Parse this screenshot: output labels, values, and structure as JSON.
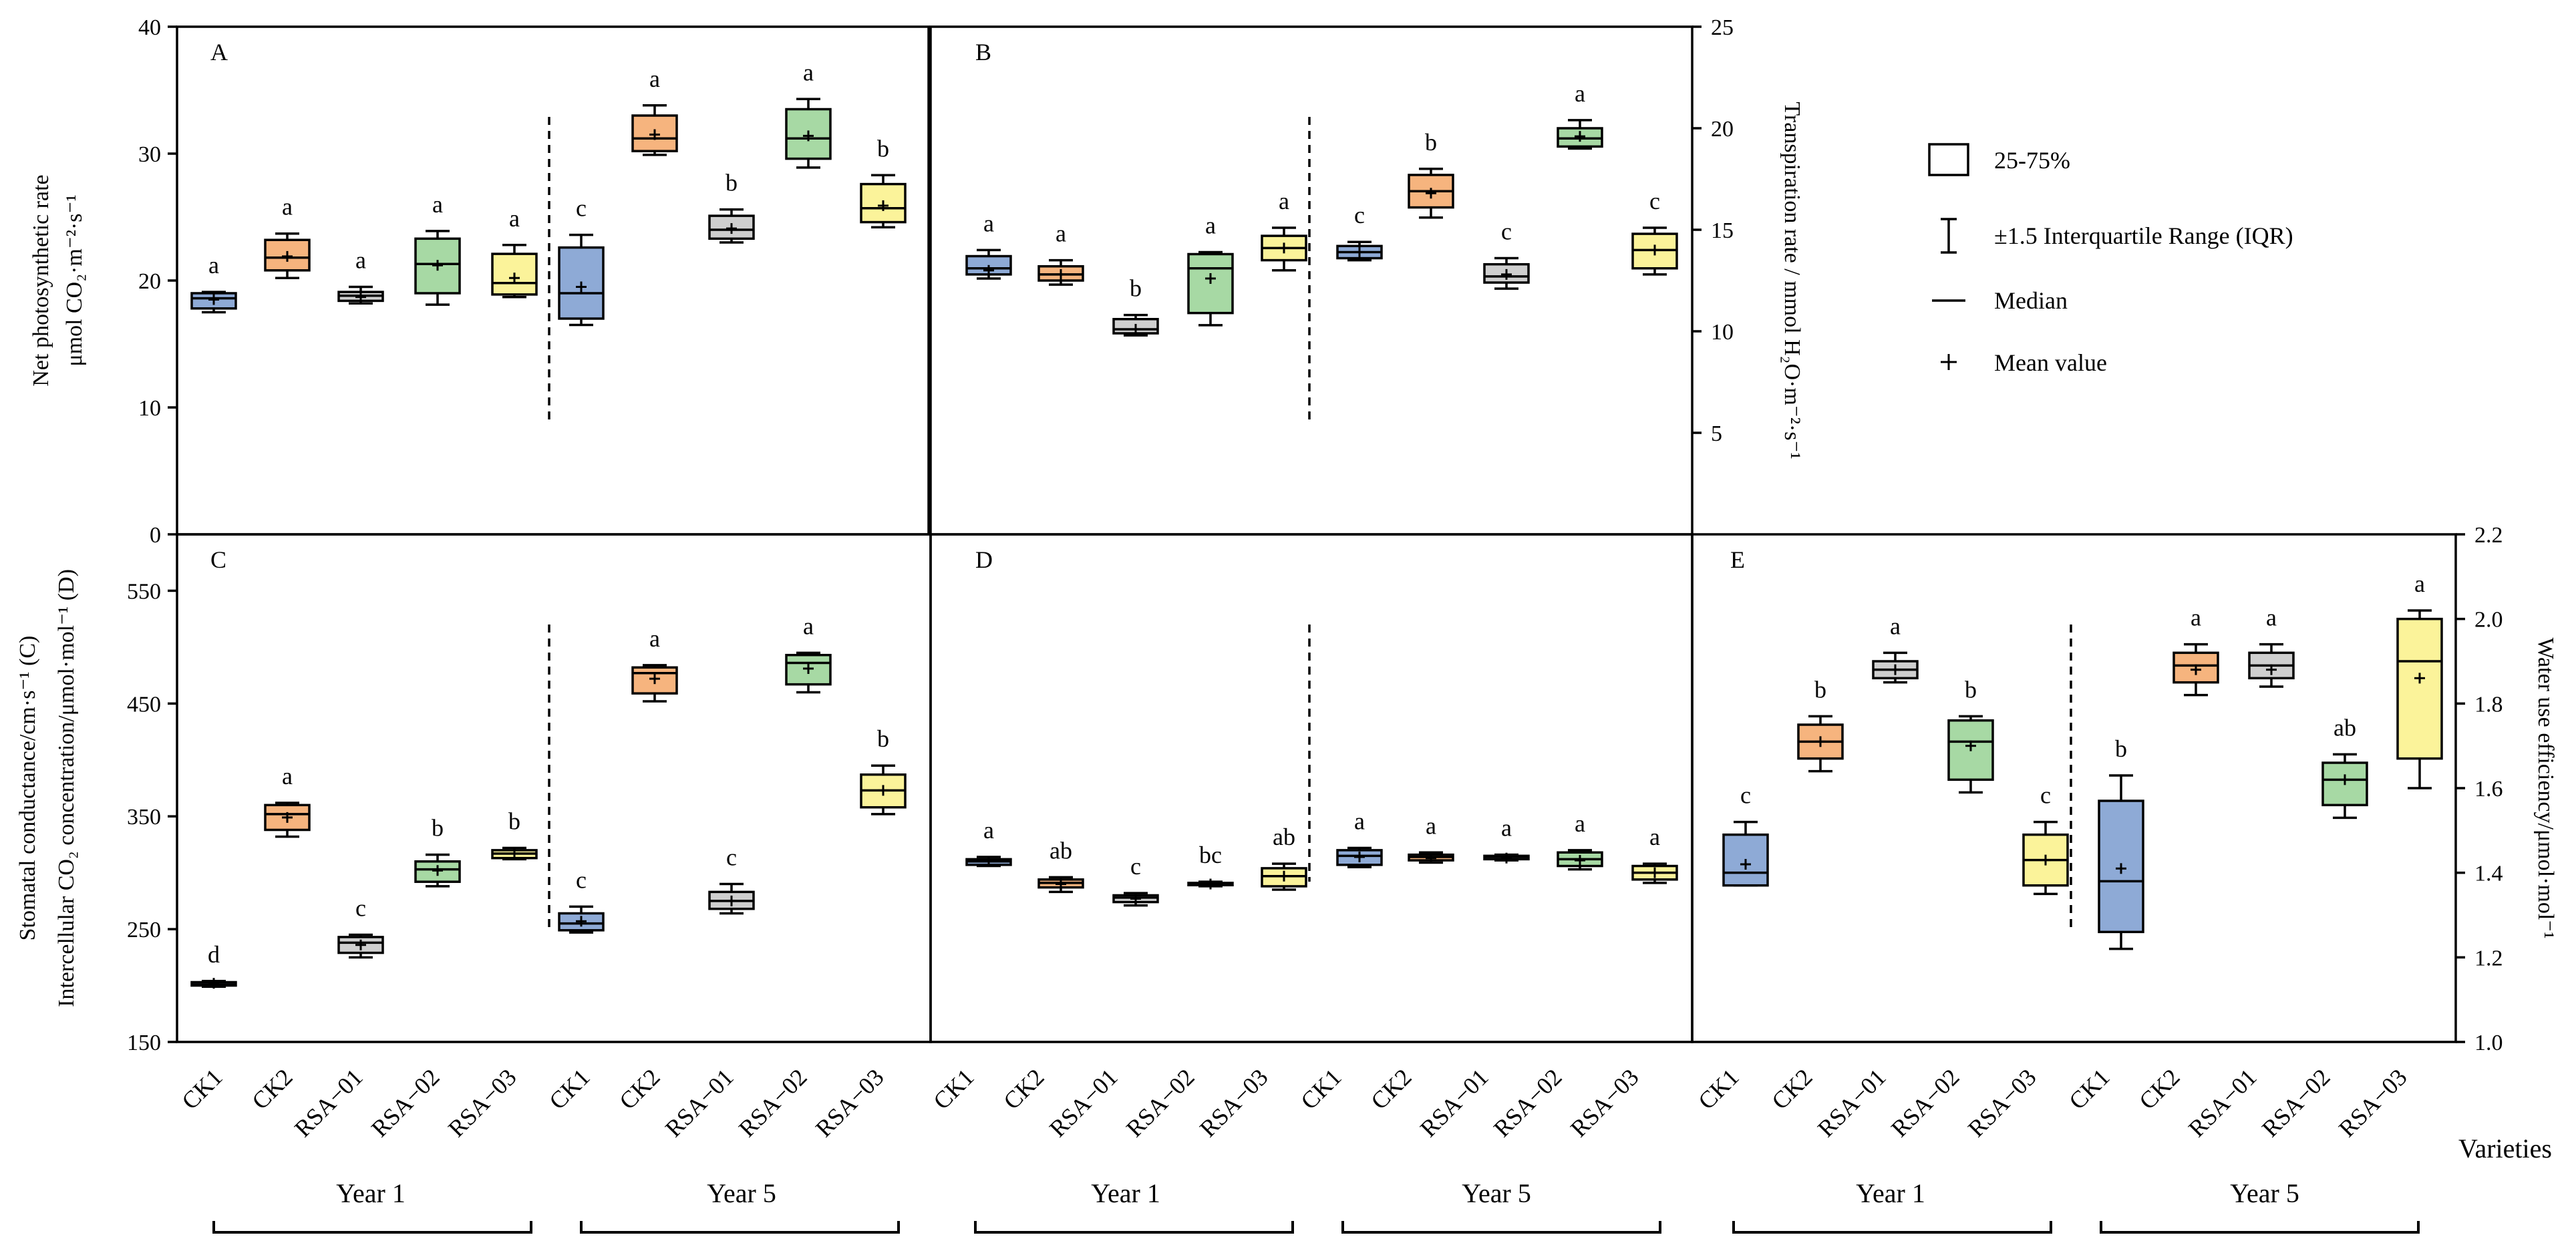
{
  "colors": {
    "CK1": "#8eaad6",
    "CK2": "#f6b47e",
    "RSA-01": "#cfcfcf",
    "RSA-02": "#a7d9a4",
    "RSA-03": "#fbf39a"
  },
  "legend": {
    "box": "25-75%",
    "whisker": "±1.5 Interquartile Range (IQR)",
    "median": "Median",
    "mean": "Mean value"
  },
  "x_axis": {
    "categories": [
      "CK1",
      "CK2",
      "RSA−01",
      "RSA−02",
      "RSA−03"
    ],
    "groups": [
      "Year 1",
      "Year 5"
    ],
    "title": "Varieties"
  },
  "chart_data": [
    {
      "panel": "A",
      "type": "box",
      "ylabel_line1": "Net photosynthetic rate",
      "ylabel_line2": "μmol CO₂·m⁻²·s⁻¹",
      "ylim": [
        0,
        40
      ],
      "yticks": [
        0,
        10,
        20,
        30,
        40
      ],
      "series": [
        {
          "group": "Year 1",
          "variety": "CK1",
          "min": 17.5,
          "q1": 17.8,
          "median": 18.6,
          "q3": 19.0,
          "max": 19.1,
          "mean": 18.5,
          "letter": "a"
        },
        {
          "group": "Year 1",
          "variety": "CK2",
          "min": 20.2,
          "q1": 20.8,
          "median": 21.8,
          "q3": 23.2,
          "max": 23.7,
          "mean": 21.9,
          "letter": "a"
        },
        {
          "group": "Year 1",
          "variety": "RSA-01",
          "min": 18.2,
          "q1": 18.4,
          "median": 18.8,
          "q3": 19.1,
          "max": 19.5,
          "mean": 18.7,
          "letter": "a"
        },
        {
          "group": "Year 1",
          "variety": "RSA-02",
          "min": 18.1,
          "q1": 19.0,
          "median": 21.3,
          "q3": 23.3,
          "max": 23.9,
          "mean": 21.2,
          "letter": "a"
        },
        {
          "group": "Year 1",
          "variety": "RSA-03",
          "min": 18.7,
          "q1": 18.9,
          "median": 19.8,
          "q3": 22.1,
          "max": 22.8,
          "mean": 20.2,
          "letter": "a"
        },
        {
          "group": "Year 5",
          "variety": "CK1",
          "min": 16.5,
          "q1": 17.0,
          "median": 19.0,
          "q3": 22.6,
          "max": 23.6,
          "mean": 19.5,
          "letter": "c"
        },
        {
          "group": "Year 5",
          "variety": "CK2",
          "min": 29.9,
          "q1": 30.2,
          "median": 31.2,
          "q3": 33.0,
          "max": 33.8,
          "mean": 31.5,
          "letter": "a"
        },
        {
          "group": "Year 5",
          "variety": "RSA-01",
          "min": 23.0,
          "q1": 23.3,
          "median": 24.0,
          "q3": 25.1,
          "max": 25.6,
          "mean": 24.1,
          "letter": "b"
        },
        {
          "group": "Year 5",
          "variety": "RSA-02",
          "min": 28.9,
          "q1": 29.6,
          "median": 31.2,
          "q3": 33.5,
          "max": 34.3,
          "mean": 31.4,
          "letter": "a"
        },
        {
          "group": "Year 5",
          "variety": "RSA-03",
          "min": 24.2,
          "q1": 24.6,
          "median": 25.7,
          "q3": 27.6,
          "max": 28.3,
          "mean": 25.9,
          "letter": "b"
        }
      ]
    },
    {
      "panel": "B",
      "type": "box",
      "ylabel": "Transpiration rate / mmol H₂O·m⁻²·s⁻¹",
      "ylim": [
        0,
        25
      ],
      "yticks": [
        5,
        10,
        15,
        20,
        25
      ],
      "series": [
        {
          "group": "Year 1",
          "variety": "CK1",
          "min": 12.6,
          "q1": 12.8,
          "median": 13.1,
          "q3": 13.7,
          "max": 14.0,
          "mean": 13.0,
          "letter": "a"
        },
        {
          "group": "Year 1",
          "variety": "CK2",
          "min": 12.3,
          "q1": 12.5,
          "median": 12.8,
          "q3": 13.2,
          "max": 13.5,
          "mean": 12.8,
          "letter": "a"
        },
        {
          "group": "Year 1",
          "variety": "RSA-01",
          "min": 9.8,
          "q1": 9.9,
          "median": 10.1,
          "q3": 10.6,
          "max": 10.8,
          "mean": 10.1,
          "letter": "b"
        },
        {
          "group": "Year 1",
          "variety": "RSA-02",
          "min": 10.3,
          "q1": 10.9,
          "median": 13.1,
          "q3": 13.8,
          "max": 13.9,
          "mean": 12.6,
          "letter": "a"
        },
        {
          "group": "Year 1",
          "variety": "RSA-03",
          "min": 13.0,
          "q1": 13.5,
          "median": 14.1,
          "q3": 14.7,
          "max": 15.1,
          "mean": 14.1,
          "letter": "a"
        },
        {
          "group": "Year 5",
          "variety": "CK1",
          "min": 13.5,
          "q1": 13.6,
          "median": 13.9,
          "q3": 14.2,
          "max": 14.4,
          "mean": 13.9,
          "letter": "c"
        },
        {
          "group": "Year 5",
          "variety": "CK2",
          "min": 15.6,
          "q1": 16.1,
          "median": 16.9,
          "q3": 17.7,
          "max": 18.0,
          "mean": 16.8,
          "letter": "b"
        },
        {
          "group": "Year 5",
          "variety": "RSA-01",
          "min": 12.1,
          "q1": 12.4,
          "median": 12.7,
          "q3": 13.3,
          "max": 13.6,
          "mean": 12.8,
          "letter": "c"
        },
        {
          "group": "Year 5",
          "variety": "RSA-02",
          "min": 19.0,
          "q1": 19.1,
          "median": 19.5,
          "q3": 20.0,
          "max": 20.4,
          "mean": 19.6,
          "letter": "a"
        },
        {
          "group": "Year 5",
          "variety": "RSA-03",
          "min": 12.8,
          "q1": 13.1,
          "median": 14.0,
          "q3": 14.8,
          "max": 15.1,
          "mean": 14.0,
          "letter": "c"
        }
      ]
    },
    {
      "panel": "C",
      "type": "box",
      "ylabel": "Stomatal conductance/cm·s⁻¹ (C)",
      "ylim": [
        150,
        600
      ],
      "yticks": [
        150,
        250,
        350,
        450,
        550
      ],
      "series": [
        {
          "group": "Year 1",
          "variety": "CK1",
          "min": 199,
          "q1": 200,
          "median": 201,
          "q3": 203,
          "max": 204,
          "mean": 202,
          "letter": "d"
        },
        {
          "group": "Year 1",
          "variety": "CK2",
          "min": 332,
          "q1": 338,
          "median": 352,
          "q3": 360,
          "max": 362,
          "mean": 349,
          "letter": "a"
        },
        {
          "group": "Year 1",
          "variety": "RSA-01",
          "min": 225,
          "q1": 229,
          "median": 238,
          "q3": 243,
          "max": 245,
          "mean": 236,
          "letter": "c"
        },
        {
          "group": "Year 1",
          "variety": "RSA-02",
          "min": 288,
          "q1": 292,
          "median": 303,
          "q3": 310,
          "max": 316,
          "mean": 302,
          "letter": "b"
        },
        {
          "group": "Year 1",
          "variety": "RSA-03",
          "min": 312,
          "q1": 313,
          "median": 317,
          "q3": 320,
          "max": 322,
          "mean": 317,
          "letter": "b"
        },
        {
          "group": "Year 5",
          "variety": "CK1",
          "min": 247,
          "q1": 249,
          "median": 255,
          "q3": 264,
          "max": 270,
          "mean": 257,
          "letter": "c"
        },
        {
          "group": "Year 5",
          "variety": "CK2",
          "min": 452,
          "q1": 459,
          "median": 477,
          "q3": 482,
          "max": 484,
          "mean": 472,
          "letter": "a"
        },
        {
          "group": "Year 5",
          "variety": "RSA-01",
          "min": 264,
          "q1": 268,
          "median": 275,
          "q3": 283,
          "max": 290,
          "mean": 275,
          "letter": "c"
        },
        {
          "group": "Year 5",
          "variety": "RSA-02",
          "min": 460,
          "q1": 467,
          "median": 486,
          "q3": 493,
          "max": 495,
          "mean": 481,
          "letter": "a"
        },
        {
          "group": "Year 5",
          "variety": "RSA-03",
          "min": 352,
          "q1": 358,
          "median": 373,
          "q3": 387,
          "max": 395,
          "mean": 373,
          "letter": "b"
        }
      ]
    },
    {
      "panel": "D",
      "type": "box",
      "ylabel": "Intercellular CO₂ concentration/μmol·mol⁻¹ (D)",
      "ylim": [
        150,
        600
      ],
      "series": [
        {
          "group": "Year 1",
          "variety": "CK1",
          "min": 306,
          "q1": 307,
          "median": 310,
          "q3": 312,
          "max": 314,
          "mean": 310,
          "letter": "a"
        },
        {
          "group": "Year 1",
          "variety": "CK2",
          "min": 283,
          "q1": 287,
          "median": 291,
          "q3": 294,
          "max": 296,
          "mean": 290,
          "letter": "ab"
        },
        {
          "group": "Year 1",
          "variety": "RSA-01",
          "min": 271,
          "q1": 274,
          "median": 278,
          "q3": 280,
          "max": 282,
          "mean": 277,
          "letter": "c"
        },
        {
          "group": "Year 1",
          "variety": "RSA-02",
          "min": 288,
          "q1": 289,
          "median": 290,
          "q3": 291,
          "max": 292,
          "mean": 290,
          "letter": "bc"
        },
        {
          "group": "Year 1",
          "variety": "RSA-03",
          "min": 285,
          "q1": 288,
          "median": 297,
          "q3": 304,
          "max": 308,
          "mean": 297,
          "letter": "ab"
        },
        {
          "group": "Year 5",
          "variety": "CK1",
          "min": 305,
          "q1": 307,
          "median": 315,
          "q3": 320,
          "max": 322,
          "mean": 314,
          "letter": "a"
        },
        {
          "group": "Year 5",
          "variety": "CK2",
          "min": 309,
          "q1": 311,
          "median": 314,
          "q3": 316,
          "max": 318,
          "mean": 313,
          "letter": "a"
        },
        {
          "group": "Year 5",
          "variety": "RSA-01",
          "min": 311,
          "q1": 312,
          "median": 314,
          "q3": 315,
          "max": 316,
          "mean": 313,
          "letter": "a"
        },
        {
          "group": "Year 5",
          "variety": "RSA-02",
          "min": 303,
          "q1": 306,
          "median": 312,
          "q3": 318,
          "max": 320,
          "mean": 311,
          "letter": "a"
        },
        {
          "group": "Year 5",
          "variety": "RSA-03",
          "min": 291,
          "q1": 294,
          "median": 300,
          "q3": 306,
          "max": 308,
          "mean": 300,
          "letter": "a"
        }
      ]
    },
    {
      "panel": "E",
      "type": "box",
      "ylabel": "Water use efficiency/μmol·mol⁻¹",
      "ylim": [
        1.0,
        2.2
      ],
      "yticks": [
        1.0,
        1.2,
        1.4,
        1.6,
        1.8,
        2.0,
        2.2
      ],
      "series": [
        {
          "group": "Year 1",
          "variety": "CK1",
          "min": 1.37,
          "q1": 1.37,
          "median": 1.4,
          "q3": 1.49,
          "max": 1.52,
          "mean": 1.42,
          "letter": "c"
        },
        {
          "group": "Year 1",
          "variety": "CK2",
          "min": 1.64,
          "q1": 1.67,
          "median": 1.71,
          "q3": 1.75,
          "max": 1.77,
          "mean": 1.71,
          "letter": "b"
        },
        {
          "group": "Year 1",
          "variety": "RSA-01",
          "min": 1.85,
          "q1": 1.86,
          "median": 1.88,
          "q3": 1.9,
          "max": 1.92,
          "mean": 1.88,
          "letter": "a"
        },
        {
          "group": "Year 1",
          "variety": "RSA-02",
          "min": 1.59,
          "q1": 1.62,
          "median": 1.71,
          "q3": 1.76,
          "max": 1.77,
          "mean": 1.7,
          "letter": "b"
        },
        {
          "group": "Year 1",
          "variety": "RSA-03",
          "min": 1.35,
          "q1": 1.37,
          "median": 1.43,
          "q3": 1.49,
          "max": 1.52,
          "mean": 1.43,
          "letter": "c"
        },
        {
          "group": "Year 5",
          "variety": "CK1",
          "min": 1.22,
          "q1": 1.26,
          "median": 1.38,
          "q3": 1.57,
          "max": 1.63,
          "mean": 1.41,
          "letter": "b"
        },
        {
          "group": "Year 5",
          "variety": "CK2",
          "min": 1.82,
          "q1": 1.85,
          "median": 1.89,
          "q3": 1.92,
          "max": 1.94,
          "mean": 1.88,
          "letter": "a"
        },
        {
          "group": "Year 5",
          "variety": "RSA-01",
          "min": 1.84,
          "q1": 1.86,
          "median": 1.89,
          "q3": 1.92,
          "max": 1.94,
          "mean": 1.88,
          "letter": "a"
        },
        {
          "group": "Year 5",
          "variety": "RSA-02",
          "min": 1.53,
          "q1": 1.56,
          "median": 1.62,
          "q3": 1.66,
          "max": 1.68,
          "mean": 1.62,
          "letter": "ab"
        },
        {
          "group": "Year 5",
          "variety": "RSA-03",
          "min": 1.6,
          "q1": 1.67,
          "median": 1.9,
          "q3": 2.0,
          "max": 2.02,
          "mean": 1.86,
          "letter": "a"
        }
      ]
    }
  ]
}
